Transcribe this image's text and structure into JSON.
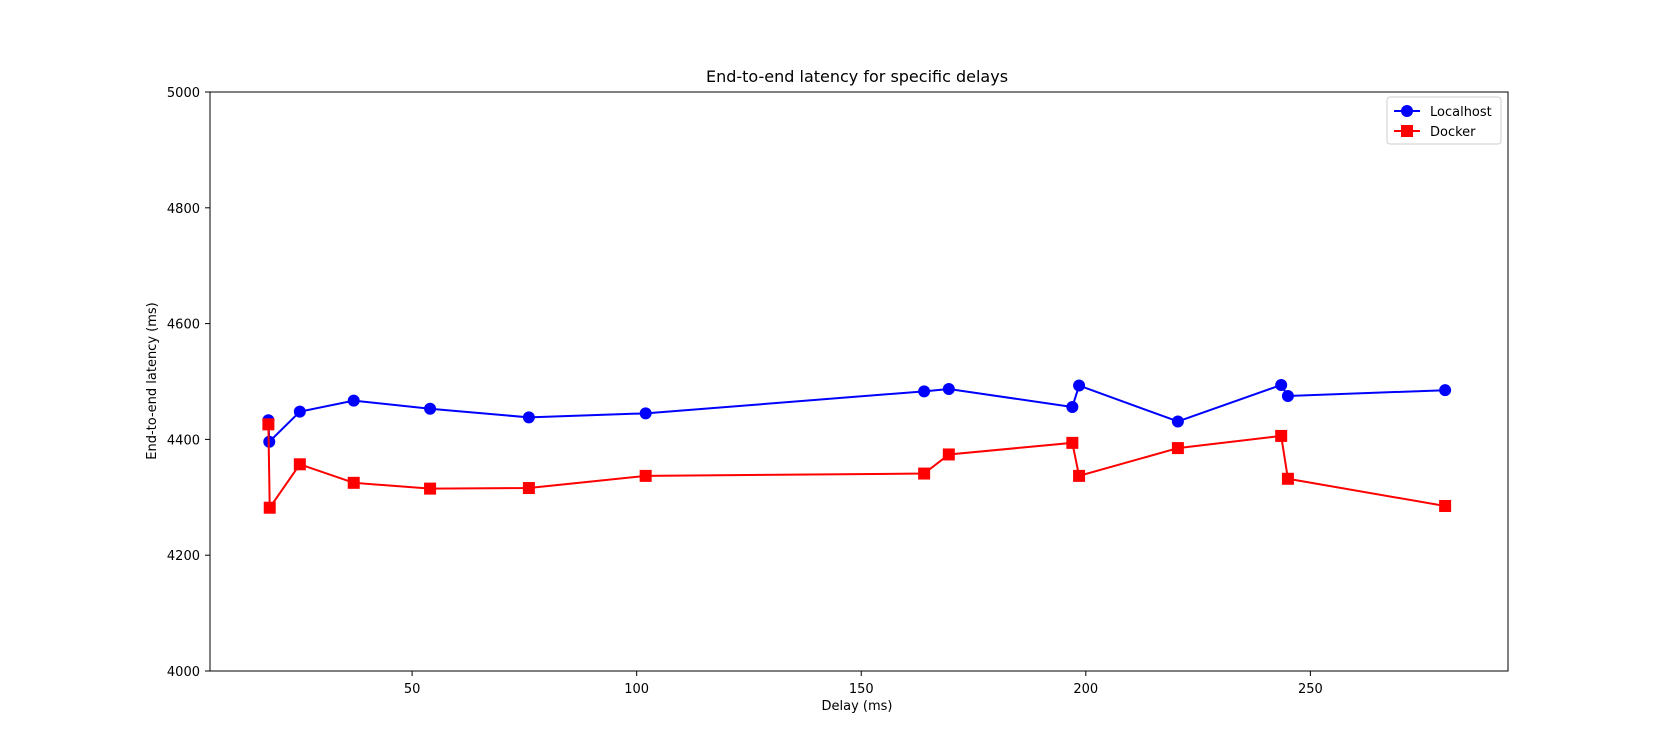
{
  "chart_data": {
    "type": "line",
    "title": "End-to-end latency for specific delays",
    "xlabel": "Delay (ms)",
    "ylabel": "End-to-end latency (ms)",
    "xlim": [
      5,
      294
    ],
    "ylim": [
      4000,
      5000
    ],
    "xticks": [
      50,
      100,
      150,
      200,
      250
    ],
    "yticks": [
      4000,
      4200,
      4400,
      4600,
      4800,
      5000
    ],
    "grid": false,
    "legend_position": "upper right",
    "series": [
      {
        "name": "Localhost",
        "color": "#0000ff",
        "marker": "circle",
        "x": [
          18.0,
          18.2,
          25.0,
          37.0,
          54.0,
          76.0,
          102.0,
          164.0,
          169.5,
          197.0,
          198.5,
          220.5,
          243.5,
          245.0,
          280.0
        ],
        "y": [
          4433,
          4396,
          4448,
          4467,
          4453,
          4438,
          4445,
          4483,
          4487,
          4456,
          4493,
          4431,
          4494,
          4475,
          4485
        ]
      },
      {
        "name": "Docker",
        "color": "#ff0000",
        "marker": "square",
        "x": [
          18.0,
          18.3,
          25.0,
          37.0,
          54.0,
          76.0,
          102.0,
          164.0,
          169.5,
          197.0,
          198.5,
          220.5,
          243.5,
          245.0,
          280.0
        ],
        "y": [
          4426,
          4282,
          4357,
          4325,
          4315,
          4316,
          4337,
          4341,
          4374,
          4394,
          4337,
          4385,
          4406,
          4332,
          4285
        ]
      }
    ]
  }
}
